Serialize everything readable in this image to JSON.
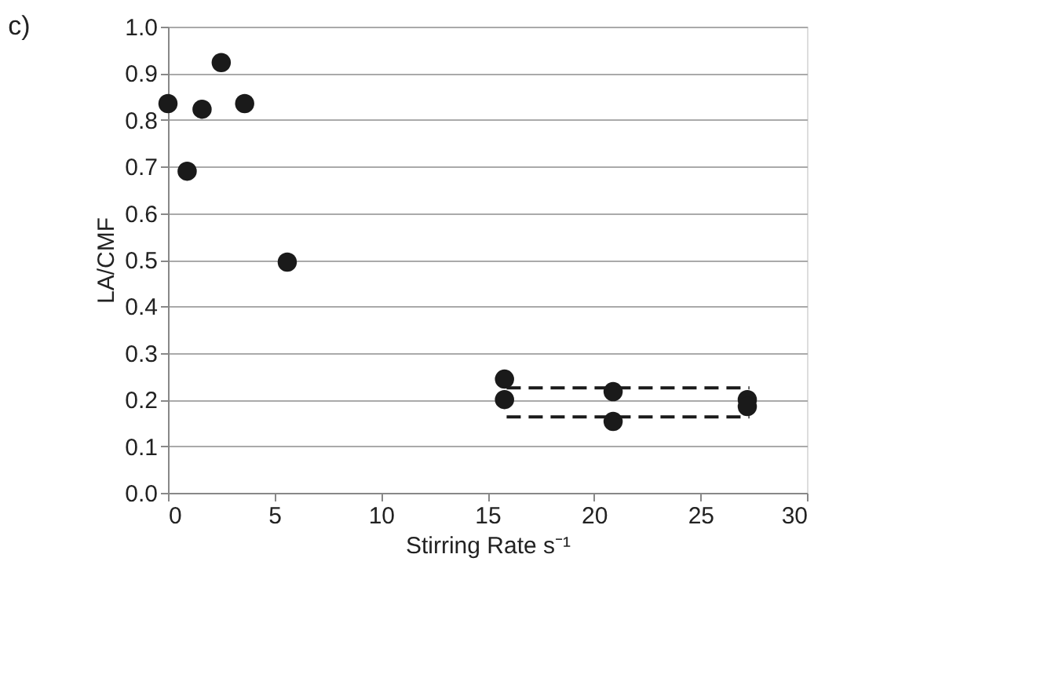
{
  "chart_data": {
    "type": "scatter",
    "title": "c)",
    "xlabel": "Stirring Rate s⁻¹",
    "ylabel": "LA/CMF",
    "xlim": [
      0,
      30
    ],
    "xticks": [
      0,
      5,
      10,
      15,
      20,
      25,
      30
    ],
    "ylim": [
      0,
      1
    ],
    "yticks": [
      {
        "value": 0,
        "label": "0.0"
      },
      0.1,
      0.2,
      0.3,
      0.4,
      0.5,
      0.6,
      0.7,
      0.8,
      0.9,
      {
        "value": 1,
        "label": "1.0"
      }
    ],
    "grid": "y",
    "marker": "circle",
    "series": [
      {
        "color": "#1a1a1a",
        "x": [
          0,
          0.9,
          1.6,
          2.5,
          3.6,
          5.6,
          15.8,
          15.8,
          20.9,
          20.9,
          27.2,
          27.2
        ],
        "values": [
          0.835,
          0.69,
          0.823,
          0.923,
          0.835,
          0.495,
          0.244,
          0.2,
          0.217,
          0.153,
          0.2,
          0.185
        ]
      },
      {
        "type": "line",
        "marker": "none",
        "color": "#1a1a1a",
        "line_style": "dashed",
        "x": [
          15.9,
          27.3
        ],
        "values": [
          0.225,
          0.225
        ]
      },
      {
        "type": "line",
        "marker": "none",
        "color": "#1a1a1a",
        "line_style": "dashed",
        "x": [
          15.9,
          27.3
        ],
        "values": [
          0.163,
          0.163
        ]
      }
    ]
  }
}
